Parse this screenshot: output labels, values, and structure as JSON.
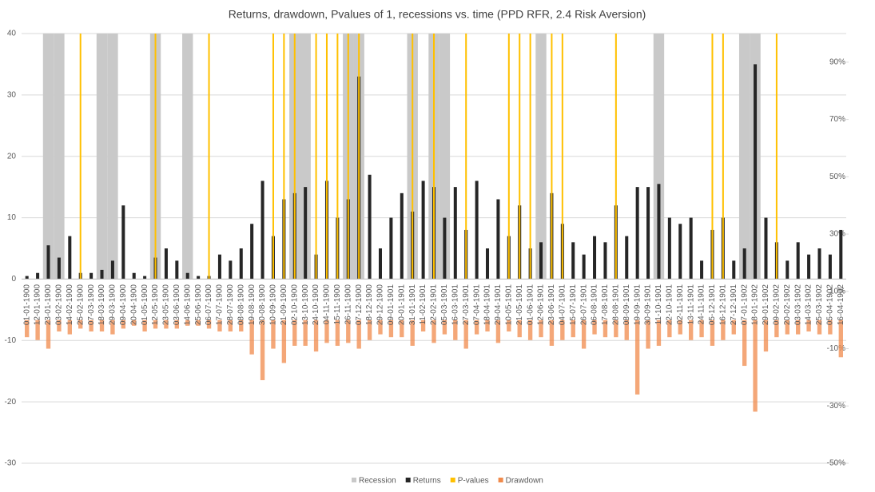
{
  "chart_data": {
    "type": "bar",
    "title": "Returns, drawdown, Pvalues of 1, recessions vs. time (PPD RFR, 2.4 Risk Aversion)",
    "categories": [
      "01-01-1900",
      "12-01-1900",
      "23-01-1900",
      "03-02-1900",
      "14-02-1900",
      "25-02-1900",
      "07-03-1900",
      "18-03-1900",
      "29-03-1900",
      "09-04-1900",
      "20-04-1900",
      "01-05-1900",
      "12-05-1900",
      "23-05-1900",
      "03-06-1900",
      "14-06-1900",
      "25-06-1900",
      "06-07-1900",
      "17-07-1900",
      "28-07-1900",
      "08-08-1900",
      "19-08-1900",
      "30-08-1900",
      "10-09-1900",
      "21-09-1900",
      "02-10-1900",
      "13-10-1900",
      "24-10-1900",
      "04-11-1900",
      "15-11-1900",
      "26-11-1900",
      "07-12-1900",
      "18-12-1900",
      "29-12-1900",
      "09-01-1901",
      "20-01-1901",
      "31-01-1901",
      "11-02-1901",
      "22-02-1901",
      "05-03-1901",
      "16-03-1901",
      "27-03-1901",
      "07-04-1901",
      "18-04-1901",
      "29-04-1901",
      "10-05-1901",
      "21-05-1901",
      "01-06-1901",
      "12-06-1901",
      "23-06-1901",
      "04-07-1901",
      "15-07-1901",
      "26-07-1901",
      "06-08-1901",
      "17-08-1901",
      "28-08-1901",
      "08-09-1901",
      "19-09-1901",
      "30-09-1901",
      "11-10-1901",
      "22-10-1901",
      "02-11-1901",
      "13-11-1901",
      "24-11-1901",
      "05-12-1901",
      "16-12-1901",
      "27-12-1901",
      "07-01-1902",
      "18-01-1902",
      "29-01-1902",
      "09-02-1902",
      "20-02-1902",
      "03-03-1902",
      "14-03-1902",
      "25-03-1902",
      "05-04-1902",
      "16-04-1902"
    ],
    "series": [
      {
        "name": "Recession",
        "color": "#c9c9c9",
        "values": [
          0,
          0,
          40,
          40,
          0,
          0,
          0,
          40,
          40,
          0,
          0,
          0,
          40,
          0,
          0,
          40,
          0,
          0,
          0,
          0,
          0,
          0,
          0,
          0,
          0,
          40,
          40,
          0,
          0,
          0,
          40,
          40,
          0,
          0,
          0,
          0,
          40,
          0,
          40,
          40,
          0,
          0,
          0,
          0,
          0,
          0,
          0,
          0,
          40,
          0,
          0,
          0,
          0,
          0,
          0,
          0,
          0,
          0,
          0,
          40,
          0,
          0,
          0,
          0,
          0,
          0,
          0,
          40,
          40,
          0,
          0,
          0,
          0,
          0,
          0,
          0,
          0
        ]
      },
      {
        "name": "Returns",
        "color": "#262626",
        "values": [
          0.5,
          1,
          5.5,
          3.5,
          7,
          1,
          1,
          1.5,
          3,
          12,
          1,
          0.5,
          3.5,
          5,
          3,
          1,
          0.5,
          0.5,
          4,
          3,
          5,
          9,
          16,
          7,
          13,
          14,
          15,
          4,
          16,
          10,
          13,
          33,
          17,
          5,
          10,
          14,
          11,
          16,
          15,
          10,
          15,
          8,
          16,
          5,
          13,
          7,
          12,
          5,
          6,
          14,
          9,
          6,
          4,
          7,
          6,
          12,
          7,
          15,
          15,
          15.5,
          10,
          9,
          10,
          3,
          8,
          10,
          3,
          5,
          35,
          10,
          6,
          3,
          6,
          4,
          5,
          4,
          8
        ]
      },
      {
        "name": "P-values",
        "color": "#ffc000",
        "values": [
          0,
          0,
          0,
          0,
          0,
          40,
          0,
          0,
          0,
          0,
          0,
          0,
          40,
          0,
          0,
          0,
          0,
          40,
          0,
          0,
          0,
          0,
          0,
          40,
          40,
          40,
          0,
          40,
          40,
          40,
          40,
          40,
          0,
          0,
          0,
          0,
          40,
          0,
          40,
          0,
          0,
          40,
          0,
          0,
          0,
          40,
          40,
          40,
          0,
          40,
          40,
          0,
          0,
          0,
          0,
          40,
          0,
          0,
          0,
          0,
          0,
          0,
          0,
          0,
          40,
          40,
          0,
          0,
          0,
          0,
          40,
          0,
          0,
          0,
          0,
          0,
          0
        ]
      },
      {
        "name": "Drawdown",
        "color": "#f08a4b",
        "axis": "y2",
        "values": [
          -6,
          -7,
          -10,
          -4,
          -5,
          -3,
          -4,
          -4,
          -5,
          -3,
          -2,
          -4,
          -3,
          -3,
          -3,
          -2,
          -2,
          -3,
          -4,
          -4,
          -4,
          -12,
          -21,
          -10,
          -15,
          -9,
          -9,
          -11,
          -8,
          -9,
          -8,
          -10,
          -7,
          -5,
          -6,
          -6,
          -9,
          -4,
          -8,
          -5,
          -7,
          -10,
          -5,
          -4,
          -8,
          -4,
          -6,
          -7,
          -6,
          -9,
          -7,
          -6,
          -10,
          -5,
          -6,
          -6,
          -7,
          -26,
          -10,
          -9,
          -6,
          -5,
          -7,
          -6,
          -9,
          -7,
          -5,
          -16,
          -32,
          -11,
          -6,
          -5,
          -5,
          -4,
          -5,
          -5,
          -13
        ]
      }
    ],
    "ylim": [
      -30,
      40
    ],
    "yticks": [
      -30,
      -20,
      -10,
      0,
      10,
      20,
      30,
      40
    ],
    "y2lim": [
      -50,
      100
    ],
    "y2ticks": [
      {
        "value": -50,
        "label": "-50%"
      },
      {
        "value": -30,
        "label": "-30%"
      },
      {
        "value": -10,
        "label": "-10%"
      },
      {
        "value": 10,
        "label": "10%"
      },
      {
        "value": 30,
        "label": "30%"
      },
      {
        "value": 50,
        "label": "50%"
      },
      {
        "value": 70,
        "label": "70%"
      },
      {
        "value": 90,
        "label": "90%"
      }
    ],
    "grid": true,
    "legend": "bottom"
  }
}
